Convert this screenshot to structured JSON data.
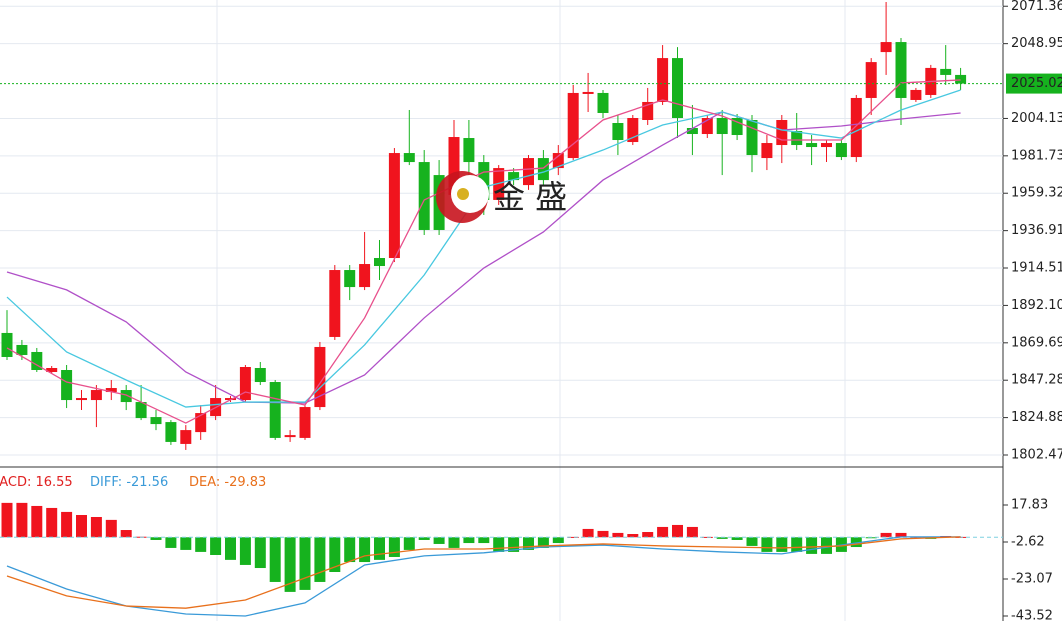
{
  "chart_data": [
    {
      "type": "candlestick",
      "up_color": "#f0141e",
      "down_color": "#16b21e",
      "ylim": [
        1795.28,
        2075.1
      ],
      "yticks": [
        2071.36,
        2048.95,
        2004.13,
        1981.73,
        1959.32,
        1936.91,
        1914.51,
        {
          "value": 1892.1,
          "label": "1892.10"
        },
        1869.69,
        1847.28,
        1824.88,
        1802.47
      ],
      "grid": true,
      "last_price": 2025.02,
      "last_price_color": "#16b21e",
      "watermark": "金 盛",
      "open": [
        1875.6,
        1868.4,
        1864.2,
        1852.2,
        1853.4,
        1835.4,
        1835.4,
        1840.2,
        1841.4,
        1834.2,
        1825.2,
        1822.2,
        1809.1,
        1816.2,
        1825.8,
        1835.4,
        1835.4,
        1854.6,
        1846.2,
        1813.2,
        1812.7,
        1831.2,
        1873.2,
        1913.3,
        1903.1,
        1920.5,
        1920.5,
        1983.4,
        1978.0,
        1970.2,
        1958.3,
        1992.4,
        1978.0,
        1955.3,
        1972.0,
        1964.2,
        1980.4,
        1974.4,
        1980.4,
        2018.8,
        2019.4,
        2001.4,
        1990.0,
        2003.2,
        2014.0,
        2040.3,
        1998.4,
        1994.8,
        2004.4,
        2004.4,
        2003.2,
        1980.4,
        1988.2,
        1996.6,
        1989.4,
        1987.0,
        1989.4,
        1981.0,
        2016.4,
        2043.9,
        2049.9,
        2015.2,
        2018.2,
        2033.8,
        2030.2
      ],
      "high": [
        1889.3,
        1871.4,
        1866.6,
        1855.8,
        1856.4,
        1841.4,
        1844.4,
        1847.4,
        1844.4,
        1844.4,
        1829.4,
        1823.4,
        1820.4,
        1832.4,
        1844.4,
        1837.8,
        1856.4,
        1858.2,
        1847.4,
        1817.4,
        1832.4,
        1870.2,
        1916.3,
        1916.3,
        1936.1,
        1931.3,
        1986.4,
        2009.2,
        1985.2,
        1979.2,
        2003.2,
        2003.2,
        1982.2,
        1976.2,
        1974.4,
        1982.2,
        1985.2,
        1988.2,
        2024.2,
        2031.4,
        2021.2,
        2006.2,
        2006.2,
        2022.4,
        2048.1,
        2046.9,
        2012.2,
        2006.2,
        2009.2,
        2006.8,
        2006.2,
        1994.2,
        2006.2,
        2007.4,
        1994.2,
        1991.2,
        1991.2,
        2018.2,
        2040.3,
        2073.9,
        2052.3,
        2022.4,
        2036.2,
        2048.1,
        2034.4
      ],
      "low": [
        1859.4,
        1859.4,
        1852.2,
        1851.0,
        1830.6,
        1829.4,
        1819.2,
        1835.4,
        1829.4,
        1823.4,
        1817.4,
        1808.5,
        1805.5,
        1811.5,
        1823.4,
        1834.2,
        1834.2,
        1844.4,
        1811.5,
        1810.3,
        1811.5,
        1829.4,
        1871.4,
        1895.3,
        1901.3,
        1907.3,
        1918.1,
        1976.2,
        1934.3,
        1934.3,
        1955.3,
        1955.3,
        1946.3,
        1952.3,
        1964.2,
        1961.3,
        1964.2,
        1970.2,
        1979.2,
        2008.0,
        2004.4,
        1982.2,
        1988.2,
        2000.2,
        2012.2,
        1992.4,
        1982.2,
        1992.4,
        1970.2,
        1991.2,
        1972.0,
        1973.2,
        1977.4,
        1985.2,
        1976.2,
        1978.0,
        1979.2,
        1978.0,
        2006.2,
        2030.2,
        2000.2,
        2014.0,
        2016.4,
        2024.2,
        2021.2
      ],
      "close": [
        1861.2,
        1862.4,
        1853.4,
        1854.6,
        1835.4,
        1836.6,
        1841.4,
        1842.6,
        1834.2,
        1824.6,
        1821.0,
        1810.3,
        1817.4,
        1827.6,
        1836.6,
        1836.6,
        1855.2,
        1846.2,
        1812.7,
        1814.4,
        1831.2,
        1867.2,
        1913.3,
        1903.1,
        1916.9,
        1915.7,
        1983.4,
        1978.0,
        1937.3,
        1937.3,
        1993.0,
        1978.0,
        1955.3,
        1974.4,
        1967.2,
        1980.4,
        1967.2,
        1983.4,
        2019.4,
        2020.0,
        2007.4,
        1991.2,
        2004.4,
        2014.0,
        2040.3,
        2004.4,
        1994.8,
        2004.4,
        1994.8,
        1994.2,
        1982.2,
        1989.4,
        2003.2,
        1988.2,
        1987.0,
        1989.4,
        1981.0,
        2016.4,
        2037.9,
        2049.9,
        2016.4,
        2021.2,
        2034.4,
        2030.2,
        2025.02
      ],
      "lines": [
        {
          "color": "#b050c8",
          "x": [
            0,
            4,
            8,
            12,
            16,
            20,
            24,
            28,
            32,
            36,
            40,
            44,
            48,
            52,
            56,
            60,
            64
          ],
          "values": [
            1912.1,
            1901.4,
            1882.2,
            1852.2,
            1834.2,
            1833.6,
            1850.4,
            1884.6,
            1914.5,
            1936.1,
            1967.2,
            1988.2,
            2008.0,
            1997.2,
            1999.6,
            2003.8,
            2007.4
          ]
        },
        {
          "color": "#48c8e0",
          "x": [
            0,
            4,
            8,
            12,
            16,
            20,
            24,
            28,
            32,
            36,
            40,
            44,
            48,
            52,
            56,
            60,
            64
          ],
          "values": [
            1897.1,
            1864.2,
            1847.4,
            1831.2,
            1834.2,
            1834.2,
            1868.4,
            1910.3,
            1963.0,
            1972.0,
            1985.2,
            2000.2,
            2008.0,
            1997.2,
            1992.4,
            2009.2,
            2021.2
          ]
        },
        {
          "color": "#e8508c",
          "x": [
            0,
            4,
            8,
            12,
            16,
            20,
            24,
            28,
            32,
            36,
            40,
            44,
            48,
            52,
            56,
            60,
            64
          ],
          "values": [
            1866.6,
            1846.2,
            1838.4,
            1821.6,
            1840.2,
            1832.4,
            1884.6,
            1955.3,
            1972.0,
            1974.4,
            2003.2,
            2015.2,
            2005.6,
            1991.2,
            1991.2,
            2025.4,
            2027.2
          ]
        }
      ]
    },
    {
      "type": "macd",
      "indicators": [
        {
          "label": "MACD",
          "value": 16.55,
          "color": "#e02020"
        },
        {
          "label": "DIFF",
          "value": -21.56,
          "color": "#3a9ad8"
        },
        {
          "label": "DEA",
          "value": -29.83,
          "color": "#e8701c"
        }
      ],
      "ylim": [
        -46.28,
        38.83
      ],
      "yticks": [
        17.83,
        -2.62,
        -23.07,
        -43.52
      ],
      "up_color": "#f0141e",
      "down_color": "#16b21e",
      "histogram": [
        19.0,
        19.0,
        17.3,
        16.2,
        14.0,
        12.3,
        11.2,
        9.6,
        4.0,
        0.3,
        -1.5,
        -5.9,
        -7.0,
        -8.1,
        -9.8,
        -12.5,
        -15.3,
        -17.0,
        -24.7,
        -30.2,
        -29.1,
        -24.7,
        -19.2,
        -13.7,
        -13.7,
        -12.5,
        -10.9,
        -7.0,
        -1.5,
        -3.7,
        -5.9,
        -3.2,
        -3.2,
        -8.1,
        -8.1,
        -7.0,
        -5.9,
        -3.2,
        0.2,
        4.6,
        3.5,
        2.4,
        1.8,
        2.9,
        5.7,
        6.8,
        5.7,
        0.2,
        -0.9,
        -1.5,
        -4.8,
        -8.1,
        -8.1,
        -8.1,
        -9.2,
        -9.2,
        -8.1,
        -5.4,
        -0.4,
        2.4,
        2.4,
        0.2,
        -0.9,
        0.7,
        0.2
      ],
      "lines": [
        {
          "color": "#3a9ad8",
          "x": [
            0,
            4,
            8,
            12,
            16,
            20,
            24,
            28,
            32,
            36,
            40,
            44,
            48,
            52,
            56,
            60,
            64
          ],
          "values": [
            -15.9,
            -28.6,
            -38.0,
            -42.4,
            -43.5,
            -36.3,
            -15.3,
            -10.3,
            -8.6,
            -5.4,
            -4.3,
            -6.5,
            -8.1,
            -9.2,
            -4.3,
            0.2,
            0.2
          ]
        },
        {
          "color": "#e8701c",
          "x": [
            0,
            4,
            8,
            12,
            16,
            20,
            24,
            28,
            32,
            36,
            40,
            44,
            48,
            52,
            56,
            60,
            64
          ],
          "values": [
            -21.4,
            -32.4,
            -38.0,
            -39.2,
            -34.7,
            -22.5,
            -10.3,
            -6.5,
            -6.5,
            -4.8,
            -3.7,
            -4.8,
            -5.4,
            -5.9,
            -4.8,
            -0.9,
            0.2
          ]
        }
      ]
    }
  ]
}
